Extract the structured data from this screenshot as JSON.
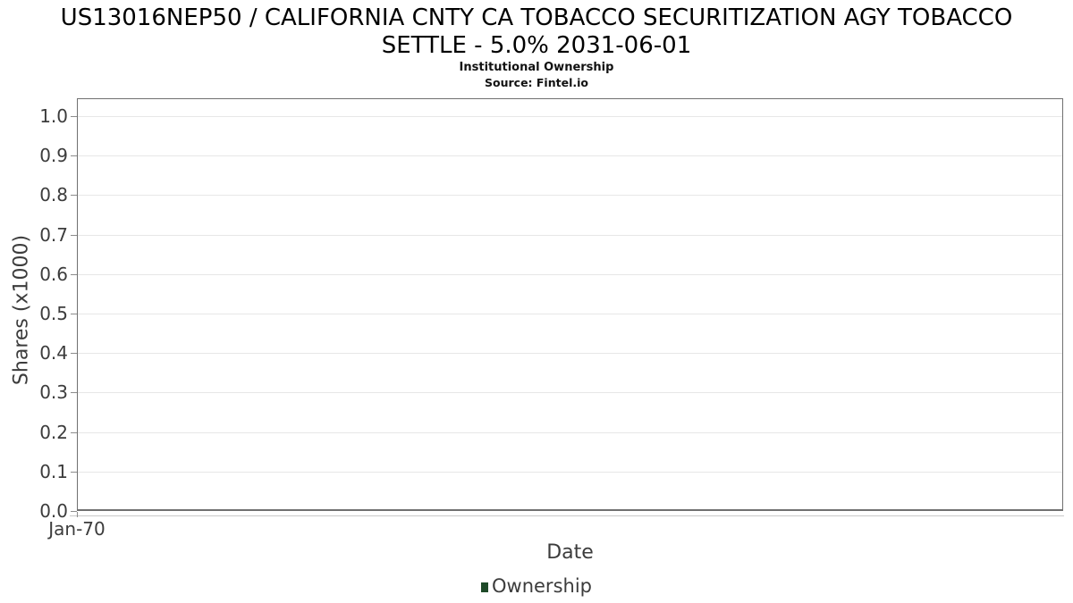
{
  "header": {
    "title_line1": "US13016NEP50 / CALIFORNIA CNTY CA TOBACCO SECURITIZATION AGY TOBACCO",
    "title_line2": "SETTLE - 5.0% 2031-06-01",
    "subtitle": "Institutional Ownership",
    "source": "Source: Fintel.io"
  },
  "chart_data": {
    "type": "bar",
    "title": "US13016NEP50 / CALIFORNIA CNTY CA TOBACCO SECURITIZATION AGY TOBACCO SETTLE - 5.0% 2031-06-01",
    "subtitle": "Institutional Ownership",
    "source": "Source: Fintel.io",
    "xlabel": "Date",
    "ylabel": "Shares (x1000)",
    "x_tick_labels": [
      "Jan-70"
    ],
    "y_ticks": [
      0.0,
      0.1,
      0.2,
      0.3,
      0.4,
      0.5,
      0.6,
      0.7,
      0.8,
      0.9,
      1.0
    ],
    "y_tick_labels": [
      "0.0",
      "0.1",
      "0.2",
      "0.3",
      "0.4",
      "0.5",
      "0.6",
      "0.7",
      "0.8",
      "0.9",
      "1.0"
    ],
    "ylim": [
      0.0,
      1.045
    ],
    "grid": true,
    "legend_position": "bottom-center",
    "series": [
      {
        "name": "Ownership",
        "color": "#1e4a28",
        "x": [],
        "values": []
      }
    ]
  },
  "colors": {
    "background": "#ffffff",
    "title_text": "#000000",
    "axis_text": "#3c3c3c",
    "plot_border": "#707070",
    "gridline": "#e7e7e7",
    "tick": "#8c8c8c",
    "axis_line_light": "#c9c9c9",
    "series_green": "#1e4a28"
  }
}
